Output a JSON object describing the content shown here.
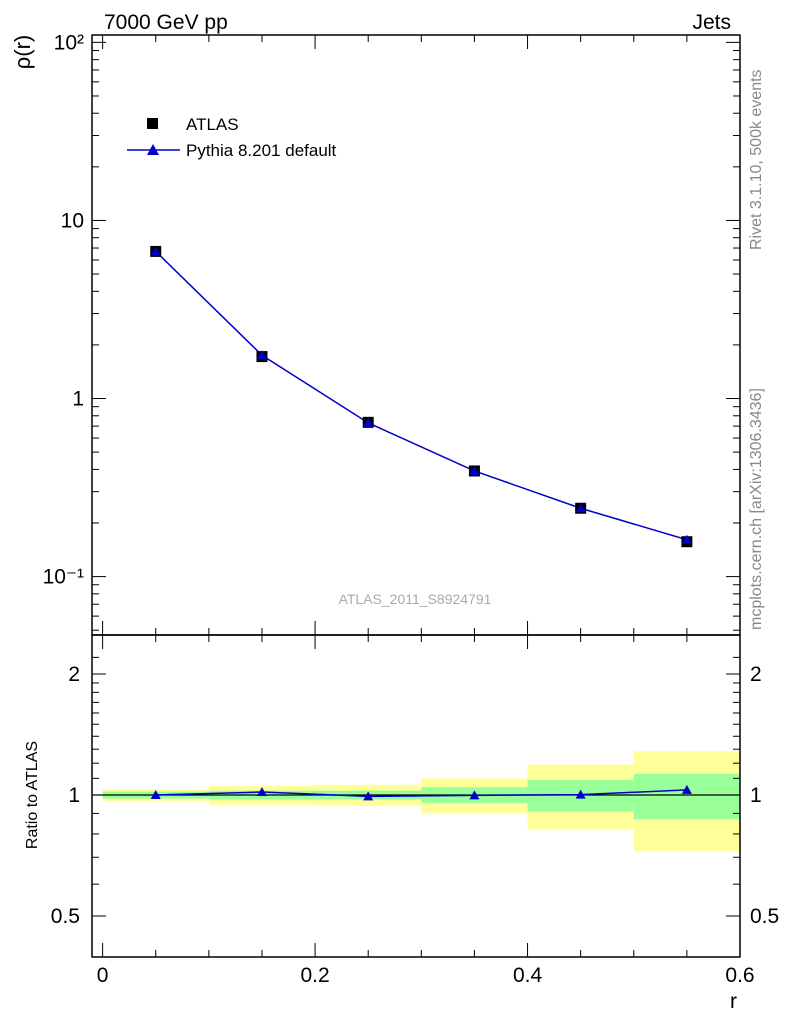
{
  "header": {
    "left": "7000 GeV pp",
    "right": "Jets"
  },
  "side_labels": {
    "rivet": "Rivet 3.1.10,  500k events",
    "source": "mcplots.cern.ch [arXiv:1306.3436]"
  },
  "watermark": "ATLAS_2011_S8924791",
  "legend": {
    "data_label": "ATLAS",
    "mc_label": "Pythia 8.201 default"
  },
  "colors": {
    "mc": "#0000cc",
    "data": "#000000",
    "band_inner": "#99ff99",
    "band_outer": "#ffff99"
  },
  "chart_data": [
    {
      "type": "line",
      "xlabel": "",
      "ylabel": "ρ(r)",
      "log_y": true,
      "xlim": [
        -0.01,
        0.6
      ],
      "ylim": [
        0.047,
        110
      ],
      "y_tick_labels": [
        "10⁻¹",
        "1",
        "10",
        "10²"
      ],
      "x": [
        0.05,
        0.15,
        0.25,
        0.35,
        0.45,
        0.55
      ],
      "series": [
        {
          "name": "ATLAS",
          "marker": "square",
          "values": [
            6.7,
            1.72,
            0.735,
            0.392,
            0.242,
            0.157
          ]
        },
        {
          "name": "Pythia 8.201 default",
          "marker": "triangle",
          "values": [
            6.7,
            1.75,
            0.73,
            0.392,
            0.242,
            0.161
          ]
        }
      ]
    },
    {
      "type": "line",
      "xlabel": "r",
      "ylabel": "Ratio to ATLAS",
      "xlim": [
        -0.01,
        0.6
      ],
      "ylim": [
        0.35,
        2.35
      ],
      "y_tick_labels": [
        "0.5",
        "1",
        "2"
      ],
      "x_tick_labels": [
        "0",
        "0.2",
        "0.4",
        "0.6"
      ],
      "bins": [
        [
          0.0,
          0.1
        ],
        [
          0.1,
          0.2
        ],
        [
          0.2,
          0.3
        ],
        [
          0.3,
          0.4
        ],
        [
          0.4,
          0.5
        ],
        [
          0.5,
          0.6
        ]
      ],
      "band_inner": [
        [
          0.98,
          1.02
        ],
        [
          0.975,
          1.025
        ],
        [
          0.975,
          1.025
        ],
        [
          0.955,
          1.045
        ],
        [
          0.91,
          1.09
        ],
        [
          0.87,
          1.13
        ]
      ],
      "band_outer": [
        [
          0.965,
          1.035
        ],
        [
          0.945,
          1.055
        ],
        [
          0.94,
          1.06
        ],
        [
          0.9,
          1.1
        ],
        [
          0.82,
          1.19
        ],
        [
          0.725,
          1.285
        ]
      ],
      "series": [
        {
          "name": "Pythia 8.201 default",
          "values": [
            1.0,
            1.017,
            0.992,
            0.998,
            1.002,
            1.03
          ]
        }
      ]
    }
  ]
}
